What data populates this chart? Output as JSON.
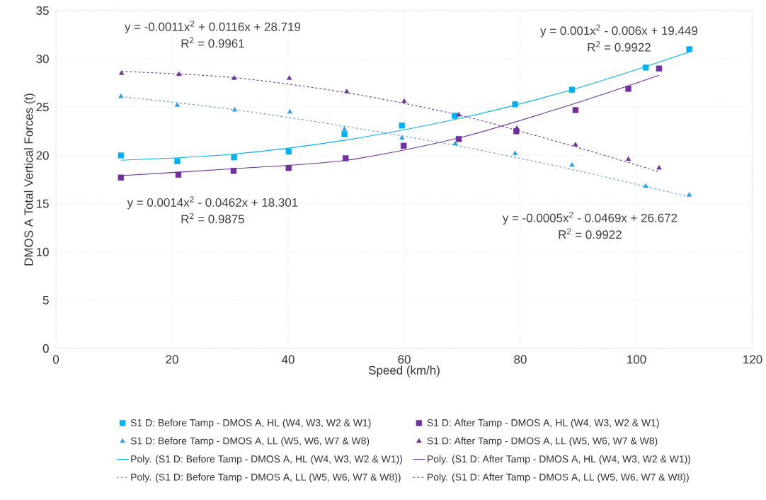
{
  "chart_data": {
    "type": "scatter",
    "xlabel": "Speed (km/h)",
    "ylabel": "DMOS A Total Vertical Forces (t)",
    "xlim": [
      0,
      120
    ],
    "ylim": [
      0,
      35
    ],
    "xticks": [
      0,
      20,
      40,
      60,
      80,
      100,
      120
    ],
    "yticks": [
      0,
      5,
      10,
      15,
      20,
      25,
      30,
      35
    ],
    "grid": true,
    "legend": "bottom",
    "annotations": [
      "y = -0.0011x$^{2}$ + 0.0116x + 28.719",
      "R$^{2}$ = 0.9961",
      "y = 0.001x$^{2}$ - 0.006x + 19.449",
      "R$^{2}$ = 0.9922",
      "y = 0.0014x$^{2}$ - 0.0462x + 18.301",
      "R$^{2}$ = 0.9875",
      "y = -0.0005x$^{2}$ - 0.0469x + 26.672",
      "R$^{2}$ = 0.9922"
    ],
    "series": [
      {
        "name": "S1 D: Before Tamp - DMOS A, HL (W4, W3, W2 & W1)",
        "marker": "square",
        "color": "#00b0f0",
        "x": [
          11.2,
          20.9,
          30.7,
          40.1,
          49.7,
          59.6,
          68.7,
          79.1,
          88.9,
          101.6,
          109.1
        ],
        "values": [
          20.0,
          19.4,
          19.8,
          20.4,
          22.2,
          23.1,
          24.1,
          25.3,
          26.8,
          29.1,
          31.0
        ]
      },
      {
        "name": "S1 D: After Tamp - DMOS A, HL (W4, W3, W2 & W1)",
        "marker": "square",
        "color": "#7030a0",
        "x": [
          11.2,
          21.1,
          30.6,
          40.1,
          49.9,
          59.9,
          69.4,
          79.3,
          89.5,
          98.6,
          103.9
        ],
        "values": [
          17.7,
          18.0,
          18.4,
          18.7,
          19.7,
          21.0,
          21.7,
          22.5,
          24.7,
          26.9,
          29.0
        ]
      },
      {
        "name": "S1 D: Before Tamp - DMOS A, LL  (W5, W6, W7 & W8)",
        "marker": "triangle",
        "color": "#2f9ee0",
        "x": [
          11.2,
          20.9,
          30.8,
          40.3,
          49.7,
          59.6,
          68.8,
          79.1,
          88.9,
          101.6,
          109.1
        ],
        "values": [
          26.1,
          25.2,
          24.7,
          24.5,
          22.7,
          21.8,
          21.2,
          20.2,
          19.0,
          16.8,
          15.9
        ]
      },
      {
        "name": "S1 D: After Tamp - DMOS A, LL  (W5, W6, W7 & W8)",
        "marker": "triangle",
        "color": "#7030a0",
        "x": [
          11.3,
          21.2,
          30.7,
          40.2,
          50.1,
          60.0,
          69.4,
          79.4,
          89.5,
          98.6,
          103.9
        ],
        "values": [
          28.5,
          28.4,
          28.0,
          28.0,
          26.6,
          25.6,
          24.2,
          22.8,
          21.1,
          19.6,
          18.7
        ]
      },
      {
        "name": "Poly. (S1 D: Before Tamp - DMOS A, HL (W4, W3, W2 & W1))",
        "type": "line",
        "marker": "none",
        "line_style": "solid",
        "color": "#00b0f0",
        "x": [
          11.2,
          30,
          50,
          70,
          90,
          109.1
        ],
        "values": [
          19.5,
          20.1,
          21.6,
          23.9,
          27.0,
          30.7
        ]
      },
      {
        "name": "Poly. (S1 D: After Tamp - DMOS A, HL (W4, W3, W2 & W1))",
        "type": "line",
        "marker": "none",
        "line_style": "solid",
        "color": "#7030a0",
        "x": [
          11.2,
          30,
          50,
          70,
          90,
          103.9
        ],
        "values": [
          17.9,
          18.6,
          19.5,
          21.9,
          25.5,
          28.3
        ]
      },
      {
        "name": "Poly. (S1 D: Before Tamp - DMOS A, LL  (W5, W6, W7 & W8))",
        "type": "line",
        "marker": "none",
        "line_style": "dashed",
        "color": "#5b9bd5",
        "x": [
          11.2,
          30,
          50,
          70,
          90,
          109.1
        ],
        "values": [
          26.1,
          24.8,
          23.0,
          20.9,
          18.4,
          15.7
        ]
      },
      {
        "name": "Poly. (S1 D: After Tamp - DMOS A, LL  (W5, W6, W7 & W8))",
        "type": "line",
        "marker": "none",
        "line_style": "dashed",
        "color": "#7030a0",
        "x": [
          11.3,
          30,
          50,
          70,
          90,
          103.9
        ],
        "values": [
          28.7,
          28.1,
          26.5,
          24.1,
          20.8,
          18.3
        ]
      }
    ]
  }
}
